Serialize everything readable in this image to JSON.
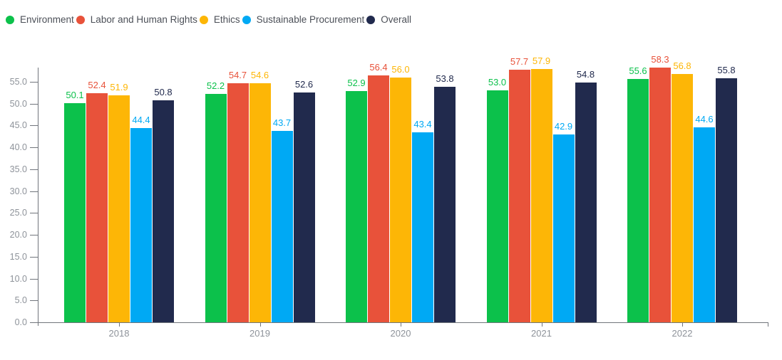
{
  "legend": {
    "position": "top-left",
    "items": [
      {
        "label": "Environment",
        "color": "#0cc14b"
      },
      {
        "label": "Labor and Human Rights",
        "color": "#e8523a"
      },
      {
        "label": "Ethics",
        "color": "#fdb606"
      },
      {
        "label": "Sustainable Procurement",
        "color": "#00a9f4"
      },
      {
        "label": "Overall",
        "color": "#212a4d"
      }
    ]
  },
  "chart_data": {
    "type": "bar",
    "title": "",
    "xlabel": "",
    "ylabel": "",
    "categories": [
      "2018",
      "2019",
      "2020",
      "2021",
      "2022"
    ],
    "series": [
      {
        "name": "Environment",
        "color": "#0cc14b",
        "values": [
          50.1,
          52.2,
          52.9,
          53.0,
          55.6
        ]
      },
      {
        "name": "Labor and Human Rights",
        "color": "#e8523a",
        "values": [
          52.4,
          54.7,
          56.4,
          57.7,
          58.3
        ]
      },
      {
        "name": "Ethics",
        "color": "#fdb606",
        "values": [
          51.9,
          54.6,
          56.0,
          57.9,
          56.8
        ]
      },
      {
        "name": "Sustainable Procurement",
        "color": "#00a9f4",
        "values": [
          44.4,
          43.7,
          43.4,
          42.9,
          44.6
        ]
      },
      {
        "name": "Overall",
        "color": "#212a4d",
        "values": [
          50.8,
          52.6,
          53.8,
          54.8,
          55.8
        ]
      }
    ],
    "value_labels_shown": true,
    "value_label_decimals": 1,
    "y_tick_labels": [
      "0.0",
      "5.0",
      "10.0",
      "15.0",
      "20.0",
      "25.0",
      "30.0",
      "35.0",
      "40.0",
      "45.0",
      "50.0",
      "55.0"
    ],
    "ylim": [
      0,
      58.3
    ],
    "grid": false,
    "legend_position": "top-left",
    "axis_colors": {
      "line": "#71757c",
      "tick_label": "#8e939a",
      "legend_text": "#4c5058"
    }
  }
}
